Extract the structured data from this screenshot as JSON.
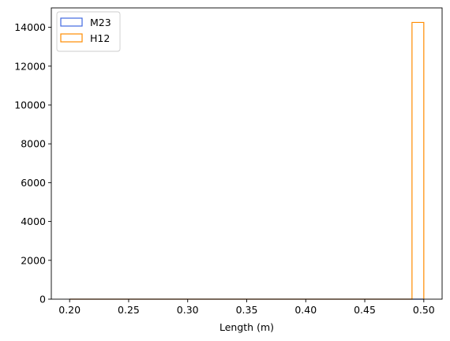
{
  "chart_data": {
    "type": "histogram",
    "xlabel": "Length (m)",
    "ylabel": "",
    "xlim": [
      0.1845,
      0.5155
    ],
    "ylim": [
      0,
      15000
    ],
    "xticks": [
      0.2,
      0.25,
      0.3,
      0.35,
      0.4,
      0.45,
      0.5
    ],
    "xtick_labels": [
      "0.20",
      "0.25",
      "0.30",
      "0.35",
      "0.40",
      "0.45",
      "0.50"
    ],
    "yticks": [
      0,
      2000,
      4000,
      6000,
      8000,
      10000,
      12000,
      14000
    ],
    "ytick_labels": [
      "0",
      "2000",
      "4000",
      "6000",
      "8000",
      "10000",
      "12000",
      "14000"
    ],
    "grid": false,
    "legend_position": "top-left",
    "series": [
      {
        "name": "M23",
        "color": "#4169e1",
        "style": "step",
        "bin_edges": [
          0.2,
          0.21,
          0.22,
          0.23,
          0.24,
          0.25,
          0.26,
          0.27,
          0.28,
          0.29,
          0.3,
          0.31,
          0.32,
          0.33,
          0.34,
          0.35,
          0.36,
          0.37,
          0.38,
          0.39,
          0.4,
          0.41,
          0.42,
          0.43,
          0.44,
          0.45,
          0.46,
          0.47,
          0.48,
          0.49,
          0.5
        ],
        "counts": [
          0,
          0,
          0,
          0,
          0,
          0,
          0,
          0,
          0,
          0,
          0,
          0,
          0,
          0,
          0,
          0,
          0,
          0,
          0,
          0,
          0,
          0,
          0,
          0,
          0,
          0,
          0,
          0,
          0,
          0
        ]
      },
      {
        "name": "H12",
        "color": "#ff8c00",
        "style": "step",
        "bin_edges": [
          0.2,
          0.21,
          0.22,
          0.23,
          0.24,
          0.25,
          0.26,
          0.27,
          0.28,
          0.29,
          0.3,
          0.31,
          0.32,
          0.33,
          0.34,
          0.35,
          0.36,
          0.37,
          0.38,
          0.39,
          0.4,
          0.41,
          0.42,
          0.43,
          0.44,
          0.45,
          0.46,
          0.47,
          0.48,
          0.49,
          0.5
        ],
        "counts": [
          0,
          0,
          0,
          0,
          0,
          0,
          0,
          0,
          0,
          0,
          0,
          0,
          0,
          0,
          0,
          0,
          0,
          0,
          0,
          0,
          0,
          0,
          0,
          0,
          0,
          0,
          0,
          0,
          0,
          14250
        ]
      }
    ]
  }
}
